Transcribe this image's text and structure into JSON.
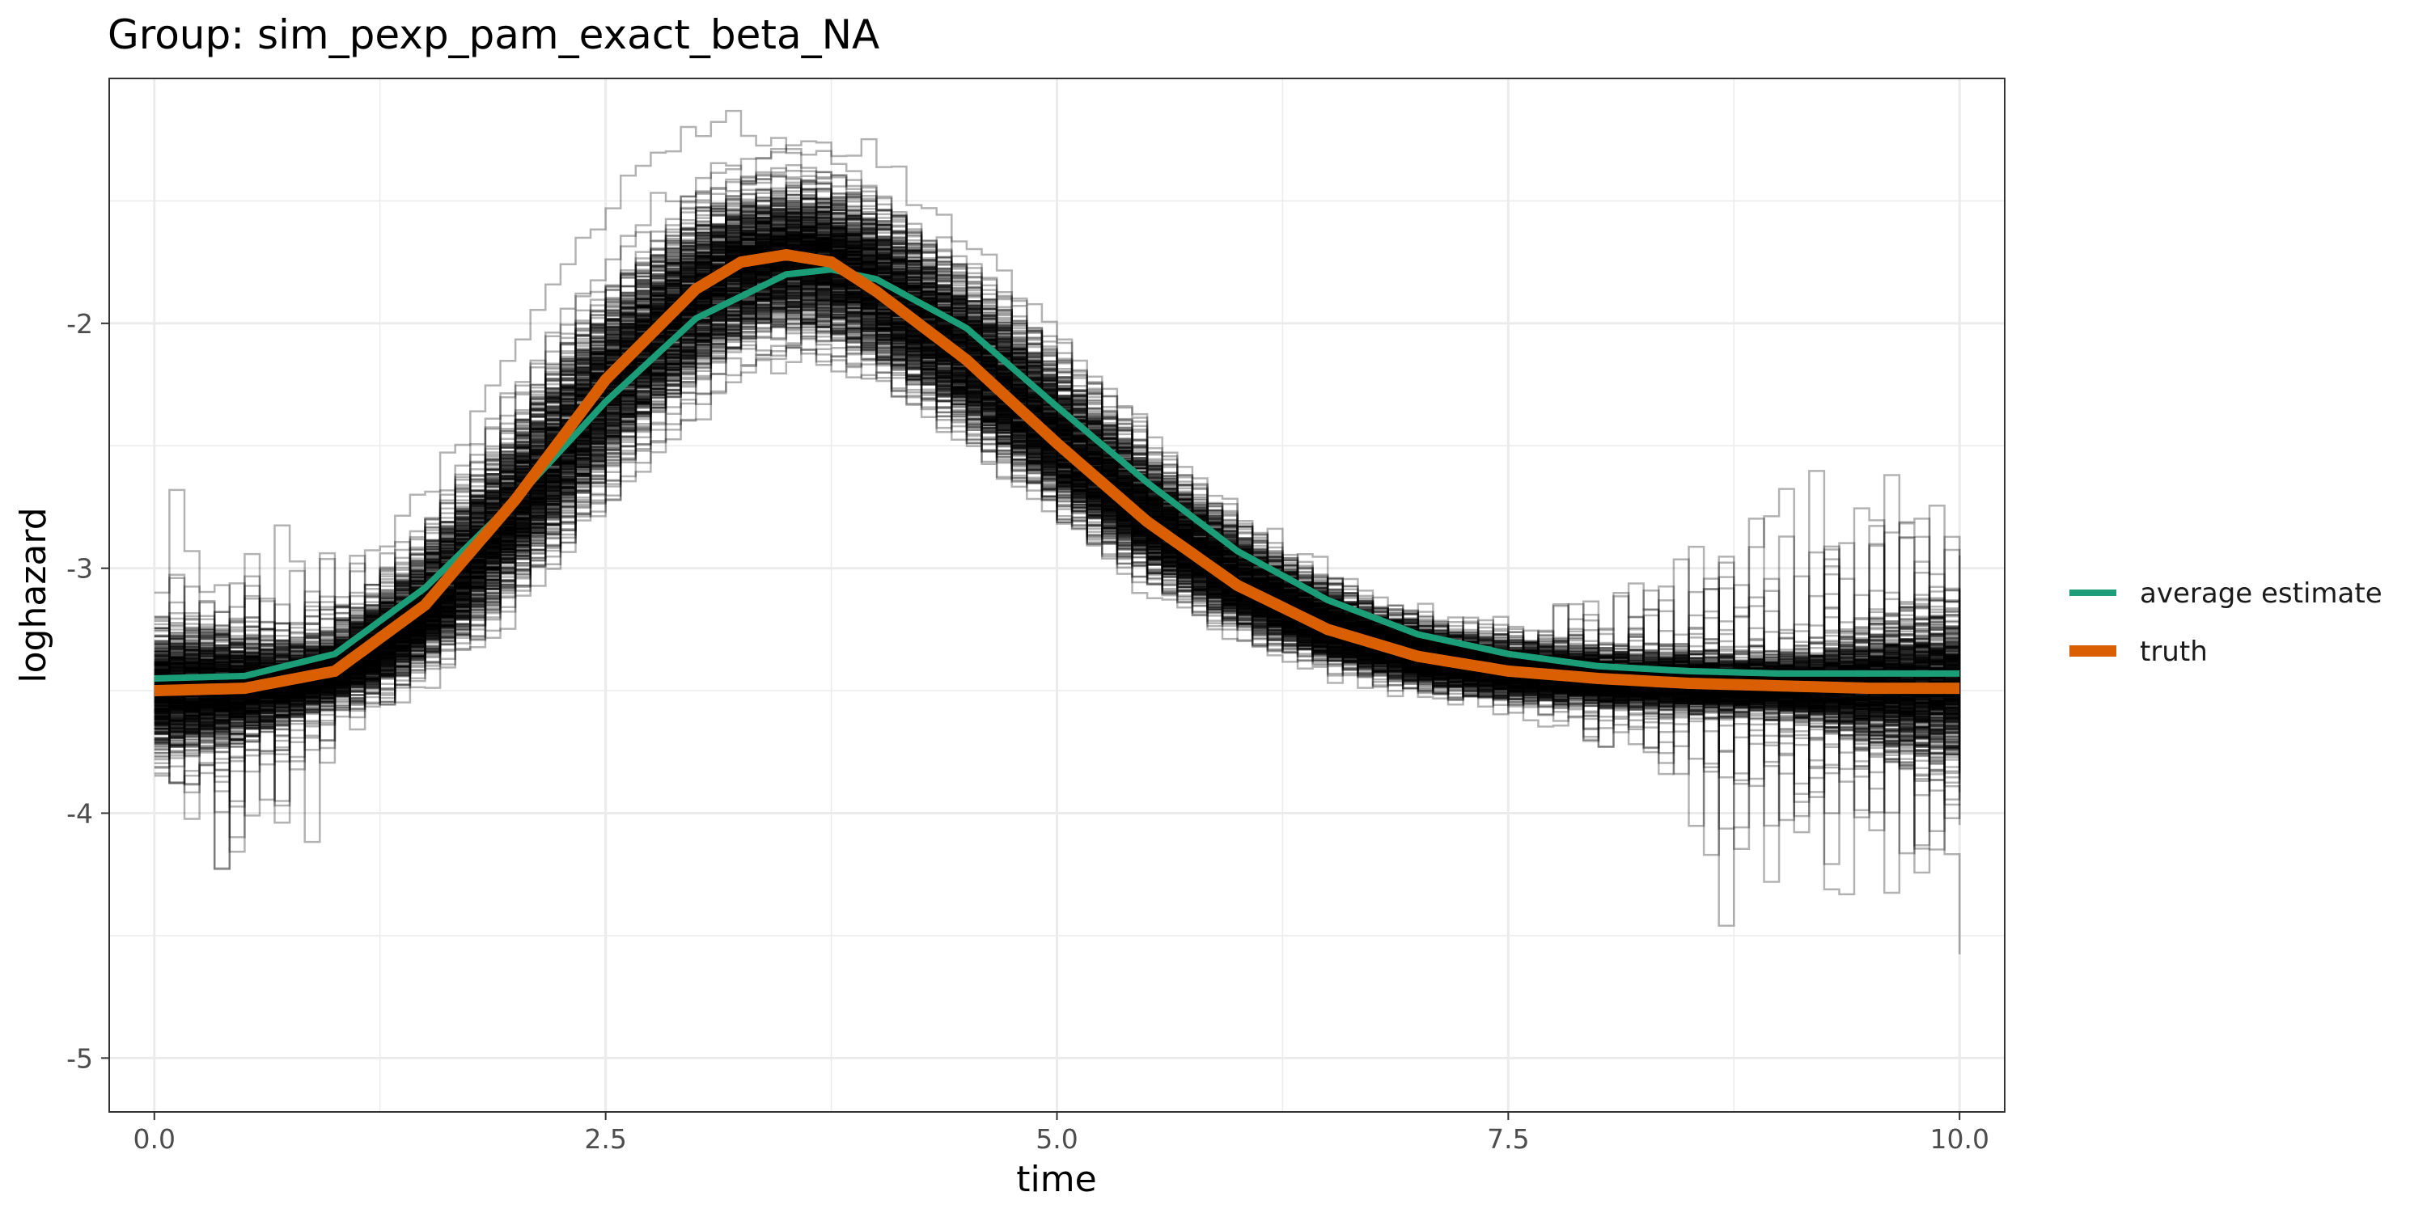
{
  "chart_data": {
    "type": "line",
    "title": "Group: sim_pexp_pam_exact_beta_NA",
    "xlabel": "time",
    "ylabel": "loghazard",
    "xlim": [
      -0.25,
      10.25
    ],
    "ylim": [
      -5.22,
      -1.0
    ],
    "x_ticks": [
      0.0,
      2.5,
      5.0,
      7.5,
      10.0
    ],
    "x_tick_labels": [
      "0.0",
      "2.5",
      "5.0",
      "7.5",
      "10.0"
    ],
    "y_ticks": [
      -5,
      -4,
      -3,
      -2
    ],
    "y_tick_labels": [
      "-5",
      "-4",
      "-3",
      "-2"
    ],
    "grid": true,
    "legend_position": "right",
    "background": "#ffffff",
    "grid_color": "#ebebeb",
    "replicate_color": "#000000",
    "replicate_count": 500,
    "series": [
      {
        "name": "average estimate",
        "color": "#1b9e77",
        "x": [
          0,
          0.5,
          1,
          1.5,
          2,
          2.5,
          3,
          3.5,
          3.75,
          4,
          4.5,
          5,
          5.5,
          6,
          6.5,
          7,
          7.5,
          8,
          8.5,
          9,
          9.5,
          10
        ],
        "y": [
          -3.45,
          -3.44,
          -3.35,
          -3.08,
          -2.72,
          -2.32,
          -1.98,
          -1.8,
          -1.78,
          -1.82,
          -2.02,
          -2.34,
          -2.65,
          -2.93,
          -3.13,
          -3.27,
          -3.35,
          -3.4,
          -3.42,
          -3.43,
          -3.43,
          -3.43
        ]
      },
      {
        "name": "truth",
        "color": "#d95f02",
        "x": [
          0,
          0.5,
          1,
          1.5,
          2,
          2.5,
          3,
          3.25,
          3.5,
          3.75,
          4,
          4.5,
          5,
          5.5,
          6,
          6.5,
          7,
          7.5,
          8,
          8.5,
          9,
          9.5,
          10
        ],
        "y": [
          -3.5,
          -3.49,
          -3.42,
          -3.15,
          -2.72,
          -2.23,
          -1.86,
          -1.75,
          -1.72,
          -1.75,
          -1.87,
          -2.15,
          -2.49,
          -2.81,
          -3.07,
          -3.25,
          -3.36,
          -3.42,
          -3.45,
          -3.47,
          -3.48,
          -3.49,
          -3.49
        ]
      }
    ]
  }
}
